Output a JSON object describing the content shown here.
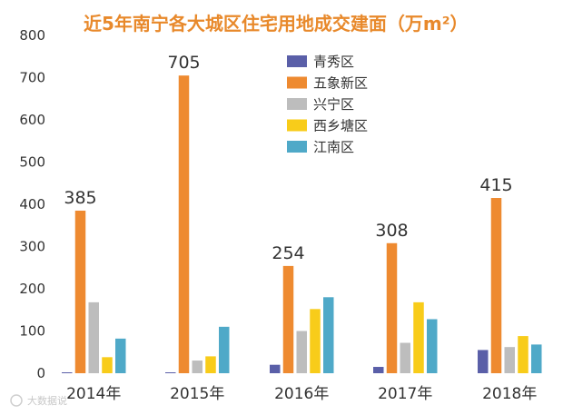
{
  "chart_data": {
    "type": "bar",
    "title": "近5年南宁各大城区住宅用地成交建面（万m²）",
    "xlabel": "",
    "ylabel": "",
    "ylim": [
      0,
      800
    ],
    "yticks": [
      0,
      100,
      200,
      300,
      400,
      500,
      600,
      700,
      800
    ],
    "categories": [
      "2014年",
      "2015年",
      "2016年",
      "2017年",
      "2018年"
    ],
    "series": [
      {
        "name": "青秀区",
        "color": "#5a5fa8",
        "values": [
          2,
          2,
          20,
          15,
          55
        ]
      },
      {
        "name": "五象新区",
        "color": "#ee8a30",
        "values": [
          385,
          705,
          254,
          308,
          415
        ]
      },
      {
        "name": "兴宁区",
        "color": "#bdbdbd",
        "values": [
          168,
          30,
          100,
          72,
          62
        ]
      },
      {
        "name": "西乡塘区",
        "color": "#f8cc1a",
        "values": [
          38,
          40,
          152,
          168,
          88
        ]
      },
      {
        "name": "江南区",
        "color": "#4fa9c8",
        "values": [
          82,
          110,
          180,
          128,
          68
        ]
      }
    ],
    "data_labels": [
      "385",
      "705",
      "254",
      "308",
      "415"
    ],
    "legend_position": "top-center",
    "grid": false
  },
  "watermark": "大数据说"
}
